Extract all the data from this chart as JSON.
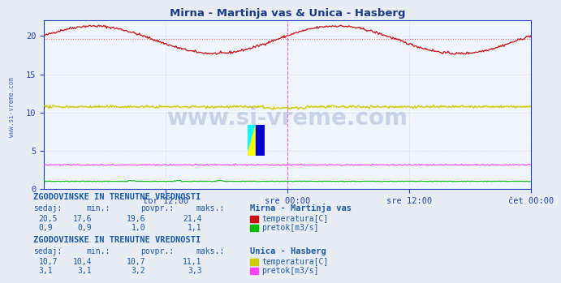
{
  "title": "Mirna - Martinja vas & Unica - Hasberg",
  "title_color": "#1a3a8a",
  "bg_color": "#e8ecf4",
  "plot_bg_color": "#f0f4fc",
  "grid_color": "#c8ccd8",
  "grid_style": "dotted",
  "xlim": [
    0,
    576
  ],
  "ylim": [
    0,
    22
  ],
  "yticks": [
    0,
    5,
    10,
    15,
    20
  ],
  "xtick_labels": [
    "tor 12:00",
    "sre 00:00",
    "sre 12:00",
    "čet 00:00"
  ],
  "xtick_positions": [
    144,
    288,
    432,
    576
  ],
  "vline_positions": [
    288,
    576
  ],
  "vline_color": "#dd44dd",
  "watermark": "www.si-vreme.com",
  "watermark_color": "#1a3a8a",
  "watermark_alpha": 0.18,
  "series": {
    "mirna_temp": {
      "color": "#cc1111",
      "avg": 19.6,
      "avg_line_color": "#ee6666",
      "avg_line_style": "dotted"
    },
    "mirna_pretok": {
      "color": "#00bb00",
      "avg": 1.0
    },
    "unica_temp": {
      "color": "#cccc00",
      "avg": 10.7,
      "avg_line_color": "#dddd55",
      "avg_line_style": "dotted"
    },
    "unica_pretok": {
      "color": "#ff44ff",
      "avg": 3.2
    }
  },
  "table1_header": "ZGODOVINSKE IN TRENUTNE VREDNOSTI",
  "table1_station": "Mirna - Martinja vas",
  "table1_rows": [
    {
      "sedaj": "20,5",
      "min": "17,6",
      "povpr": "19,6",
      "maks": "21,4",
      "legend_color": "#cc1111",
      "label": "temperatura[C]"
    },
    {
      "sedaj": "0,9",
      "min": "0,9",
      "povpr": "1,0",
      "maks": "1,1",
      "legend_color": "#00bb00",
      "label": "pretok[m3/s]"
    }
  ],
  "table2_header": "ZGODOVINSKE IN TRENUTNE VREDNOSTI",
  "table2_station": "Unica - Hasberg",
  "table2_rows": [
    {
      "sedaj": "10,7",
      "min": "10,4",
      "povpr": "10,7",
      "maks": "11,1",
      "legend_color": "#cccc00",
      "label": "temperatura[C]"
    },
    {
      "sedaj": "3,1",
      "min": "3,1",
      "povpr": "3,2",
      "maks": "3,3",
      "legend_color": "#ff44ff",
      "label": "pretok[m3/s]"
    }
  ],
  "col_headers": [
    "sedaj:",
    "min.:",
    "povpr.:",
    "maks.:"
  ],
  "text_color": "#1a5aaa",
  "axis_color": "#2244bb",
  "label_fontsize": 7.5,
  "sidebar_text": "www.si-vreme.com"
}
